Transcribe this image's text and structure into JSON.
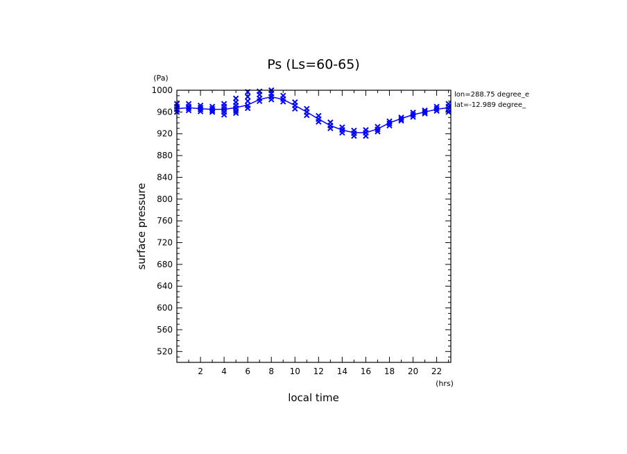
{
  "chart_data": {
    "type": "line",
    "title": "Ps (Ls=60-65)",
    "xlabel": "local time",
    "ylabel": "surface pressure",
    "x_unit": "(hrs)",
    "y_unit": "(Pa)",
    "annotations": [
      "lon=288.75 degree_e",
      "lat=-12.989 degree_"
    ],
    "xlim": [
      0,
      23.2
    ],
    "ylim": [
      500,
      1000
    ],
    "x_ticks": [
      2,
      4,
      6,
      8,
      10,
      12,
      14,
      16,
      18,
      20,
      22
    ],
    "y_ticks": [
      520,
      560,
      600,
      640,
      680,
      720,
      760,
      800,
      840,
      880,
      920,
      960,
      1000
    ],
    "grid": false,
    "colors": {
      "series": "#0000ff",
      "axes": "#000000"
    },
    "series": [
      {
        "marker": "line",
        "x": [
          0,
          1,
          2,
          3,
          4,
          5,
          6,
          7,
          8,
          9,
          10,
          11,
          12,
          13,
          14,
          15,
          16,
          17,
          18,
          19,
          20,
          21,
          22,
          23
        ],
        "values": [
          966,
          968,
          966,
          965,
          965,
          968,
          973,
          983,
          988,
          983,
          972,
          960,
          947,
          935,
          927,
          922,
          922,
          929,
          940,
          948,
          955,
          960,
          965,
          968
        ]
      },
      {
        "marker": "x",
        "x": [
          0,
          0,
          0,
          0,
          1,
          1,
          1,
          1,
          2,
          2,
          2,
          2,
          3,
          3,
          3,
          3,
          4,
          4,
          4,
          4,
          4,
          5,
          5,
          5,
          5,
          5,
          5,
          6,
          6,
          6,
          6,
          6,
          7,
          7,
          7,
          7,
          8,
          8,
          8,
          8,
          9,
          9,
          9,
          10,
          10,
          10,
          11,
          11,
          11,
          12,
          12,
          12,
          13,
          13,
          13,
          14,
          14,
          14,
          15,
          15,
          15,
          16,
          16,
          16,
          17,
          17,
          17,
          18,
          18,
          18,
          19,
          19,
          19,
          20,
          20,
          20,
          21,
          21,
          21,
          22,
          22,
          22,
          23,
          23,
          23,
          23
        ],
        "values": [
          975,
          970,
          965,
          960,
          975,
          970,
          967,
          963,
          972,
          968,
          965,
          961,
          970,
          966,
          963,
          960,
          975,
          970,
          965,
          960,
          955,
          985,
          978,
          972,
          967,
          962,
          958,
          997,
          988,
          980,
          972,
          967,
          998,
          992,
          985,
          980,
          1000,
          994,
          988,
          983,
          990,
          984,
          979,
          978,
          972,
          966,
          966,
          960,
          954,
          953,
          947,
          942,
          941,
          935,
          930,
          932,
          927,
          922,
          926,
          921,
          916,
          927,
          922,
          916,
          933,
          928,
          924,
          943,
          939,
          935,
          950,
          947,
          944,
          959,
          955,
          951,
          963,
          960,
          957,
          970,
          966,
          962,
          975,
          970,
          965,
          960
        ]
      }
    ]
  }
}
